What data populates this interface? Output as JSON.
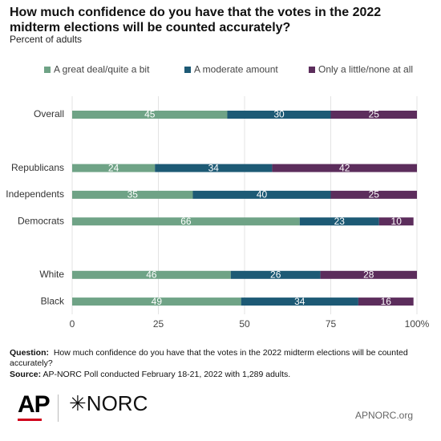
{
  "chart_data": {
    "type": "stacked_barh",
    "title": "How much confidence do you have that the votes in the 2022 midterm elections will be counted accurately?",
    "subtitle": "Percent of adults",
    "categories": [
      "Overall",
      null,
      "Republicans",
      "Independents",
      "Democrats",
      null,
      "White",
      "Black"
    ],
    "series": [
      {
        "name": "A great deal/quite a bit",
        "color": "#6fa386",
        "values": [
          45,
          null,
          24,
          35,
          66,
          null,
          46,
          49
        ]
      },
      {
        "name": "A moderate amount",
        "color": "#1d5a75",
        "values": [
          30,
          null,
          34,
          40,
          23,
          null,
          26,
          34
        ]
      },
      {
        "name": "Only a little/none at all",
        "color": "#5c2d5c",
        "values": [
          25,
          null,
          42,
          25,
          10,
          null,
          28,
          16
        ]
      }
    ],
    "xlim": [
      0,
      100
    ],
    "xticks": [
      0,
      25,
      50,
      75,
      {
        "value": 100,
        "label": "100%"
      }
    ],
    "grid": true,
    "legend": "top"
  },
  "footer": {
    "question_label": "Question:",
    "question": "How much confidence do you have that the votes in the 2022 midterm elections will be counted accurately?",
    "source_label": "Source:",
    "source": "AP-NORC Poll conducted February 18-21, 2022 with 1,289 adults."
  },
  "logos": {
    "ap": "AP",
    "norc": "NORC",
    "url": "APNORC.org"
  }
}
